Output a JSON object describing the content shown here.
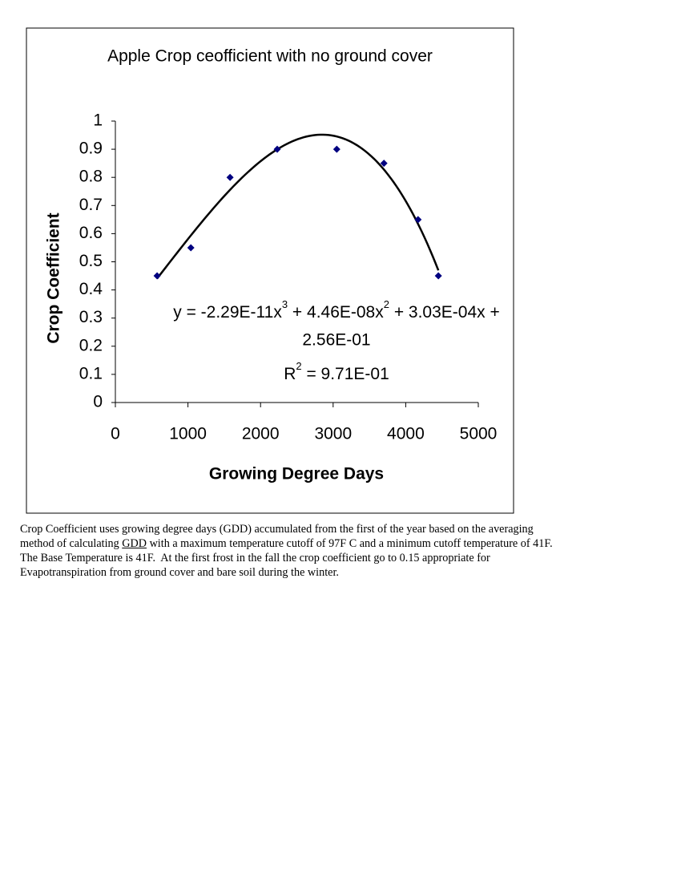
{
  "chart_data": {
    "type": "scatter",
    "title": "Apple Crop ceofficient with no ground cover",
    "x_label": "Growing Degree Days",
    "y_label": "Crop Coefficient",
    "x": [
      575,
      1040,
      1580,
      2230,
      3050,
      3700,
      4170,
      4450
    ],
    "values": [
      0.45,
      0.55,
      0.8,
      0.9,
      0.9,
      0.85,
      0.65,
      0.45
    ],
    "color": "#000080",
    "xlim": [
      0,
      5000
    ],
    "xticks": [
      0,
      1000,
      2000,
      3000,
      4000,
      5000
    ],
    "ylim": [
      0,
      1
    ],
    "yticks": [
      0,
      0.1,
      0.2,
      0.3,
      0.4,
      0.5,
      0.6,
      0.7,
      0.8,
      0.9,
      1
    ],
    "trendline": {
      "type": "poly3",
      "color": "#000000",
      "coefficients": [
        -2.29e-11,
        4.46e-08,
        0.000303,
        0.256
      ],
      "eq_a": "y = -2.29E-11x",
      "eq_a_exp": "3",
      "eq_b": " + 4.46E-08x",
      "eq_b_exp": "2",
      "eq_c": " + 3.03E-04x +",
      "eq_line2": "2.56E-01",
      "r2_r": "R",
      "r2_exp": "2",
      "r2_rest": " = 9.71E-01"
    }
  },
  "caption": {
    "line1": "Crop Coefficient uses growing degree days (GDD) accumulated from the first of the year based on the averaging",
    "line2_before": "method of calculating ",
    "link": "GDD",
    "line2_after": " with a maximum temperature cutoff of 97F C and a minimum cutoff temperature of 41F.",
    "line3": "The Base Temperature is 41F.  At the first frost in the fall the crop coefficient go to 0.15 appropriate for",
    "line4": "Evapotranspiration from ground cover and bare soil during the winter."
  }
}
